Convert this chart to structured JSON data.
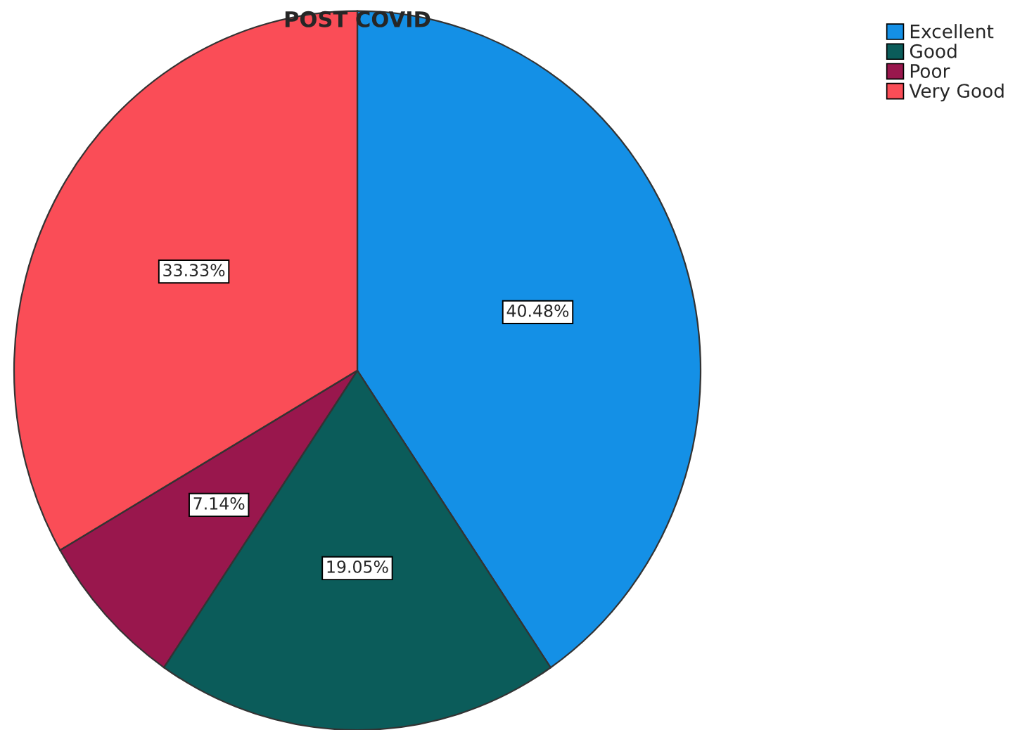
{
  "chart_data": {
    "type": "pie",
    "title": "POST COVID",
    "categories": [
      "Excellent",
      "Good",
      "Poor",
      "Very Good"
    ],
    "values": [
      40.48,
      19.05,
      7.14,
      33.33
    ],
    "colors": [
      "#1490e6",
      "#0b5c5a",
      "#99174d",
      "#fa4d57"
    ],
    "value_labels": [
      "40.48%",
      "19.05%",
      "7.14%",
      "33.33%"
    ],
    "legend": "top right"
  }
}
